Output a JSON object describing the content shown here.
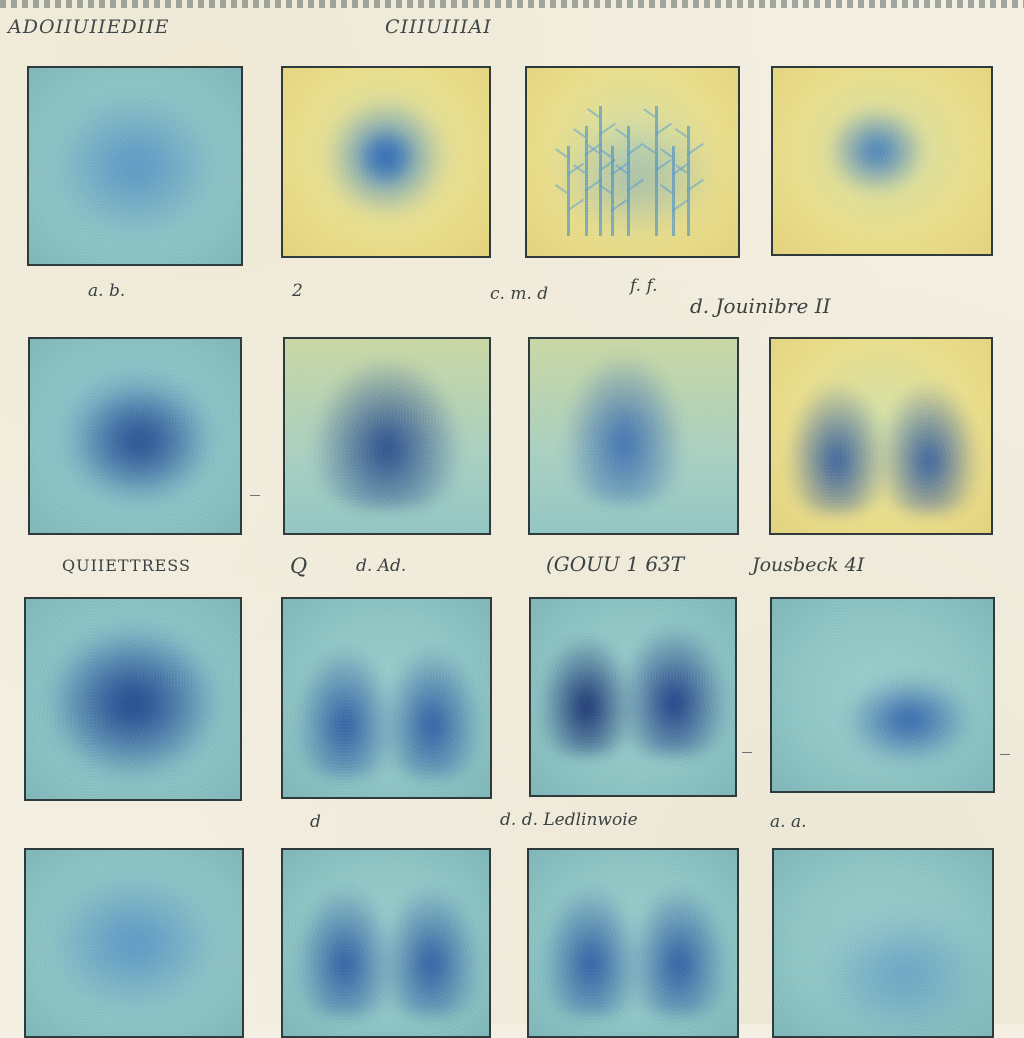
{
  "header": {
    "left_title": "ADOIIUIIEDIIE",
    "right_title": "CIIIUIIIAI"
  },
  "captions": {
    "row1": [
      "a. b.",
      "2",
      "c. m. d",
      "f. f.",
      "d. Jouinibre II"
    ],
    "row2": [
      "QUIIETTRESS",
      "Q",
      "d. Ad.",
      "(GOUU 1 63T",
      "Jousbeck 4I"
    ],
    "row3": [
      "d",
      "d. d. Ledlinwoie",
      "a. a."
    ]
  },
  "colors": {
    "paper": "#f3efe2",
    "ink_border": "#2e3a3c",
    "blue_deep": "#1d3f86",
    "blue_mid": "#3d7cc0",
    "teal_bg": "#8fc5c4",
    "yellow_bg": "#e9dd8a"
  },
  "plates": [
    {
      "row": 1,
      "col": 1,
      "bg": "teal",
      "motif": "soft-blob"
    },
    {
      "row": 1,
      "col": 2,
      "bg": "yellow",
      "motif": "single-blob"
    },
    {
      "row": 1,
      "col": 3,
      "bg": "yellow",
      "motif": "trees"
    },
    {
      "row": 1,
      "col": 4,
      "bg": "yellow",
      "motif": "small-blob"
    },
    {
      "row": 2,
      "col": 1,
      "bg": "teal",
      "motif": "dark-blob"
    },
    {
      "row": 2,
      "col": 2,
      "bg": "yellow-teal",
      "motif": "mound"
    },
    {
      "row": 2,
      "col": 3,
      "bg": "yellow-teal",
      "motif": "tall-blob"
    },
    {
      "row": 2,
      "col": 4,
      "bg": "yellow",
      "motif": "twin-mounds"
    },
    {
      "row": 3,
      "col": 1,
      "bg": "teal",
      "motif": "large-dark-blob"
    },
    {
      "row": 3,
      "col": 2,
      "bg": "teal",
      "motif": "twin-mounds"
    },
    {
      "row": 3,
      "col": 3,
      "bg": "teal",
      "motif": "twin-dark-mounds"
    },
    {
      "row": 3,
      "col": 4,
      "bg": "teal",
      "motif": "low-blob"
    },
    {
      "row": 4,
      "col": 1,
      "bg": "teal",
      "motif": "soft-blob"
    },
    {
      "row": 4,
      "col": 2,
      "bg": "teal",
      "motif": "twin-mounds"
    },
    {
      "row": 4,
      "col": 3,
      "bg": "teal",
      "motif": "twin-mounds"
    },
    {
      "row": 4,
      "col": 4,
      "bg": "teal",
      "motif": "faint-blob"
    }
  ]
}
